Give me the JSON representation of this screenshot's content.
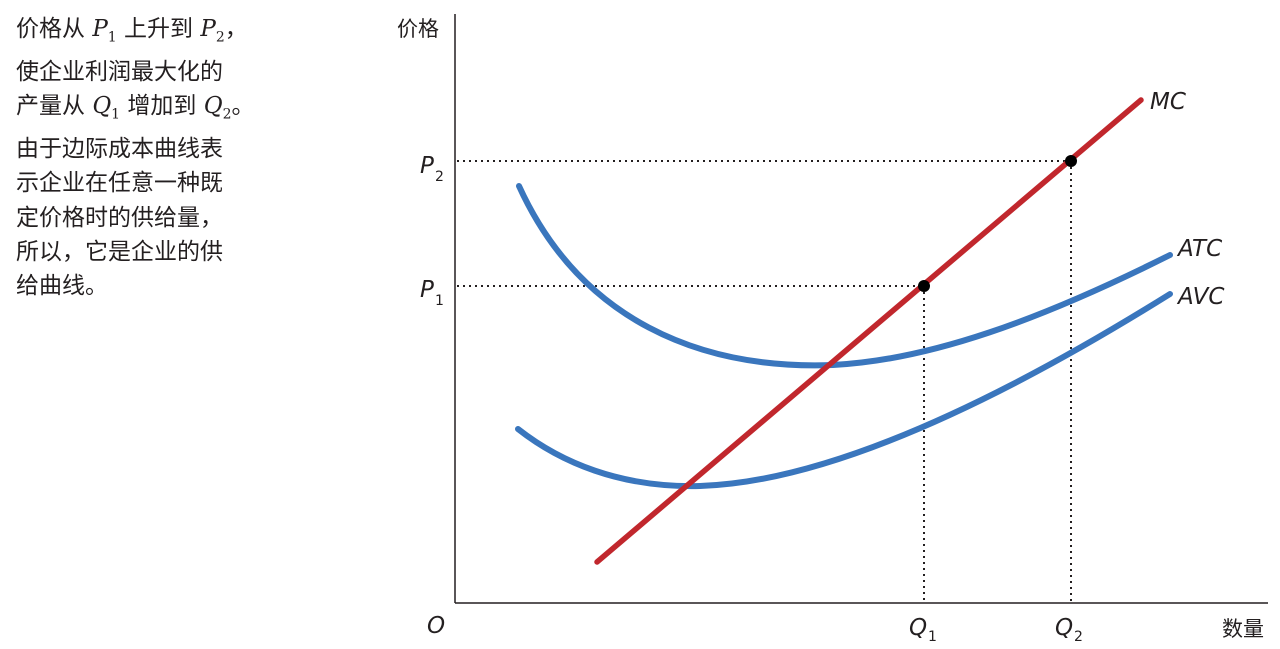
{
  "caption": {
    "l1_a": "价格从",
    "l1_p": "P",
    "l1_p_sub": "1",
    "l1_b": "上升到",
    "l1_p2": "P",
    "l1_p2_sub": "2",
    "l1_c": "，",
    "l2": "使企业利润最大化的",
    "l3_a": "产量从",
    "l3_q": "Q",
    "l3_q_sub": "1",
    "l3_b": "增加到",
    "l3_q2": "Q",
    "l3_q2_sub": "2",
    "l3_c": "。",
    "l4": "由于边际成本曲线表",
    "l5": "示企业在任意一种既",
    "l6": "定价格时的供给量，",
    "l7": "所以，它是企业的供",
    "l8": "给曲线。"
  },
  "axes": {
    "y_label": "价格",
    "x_label": "数量",
    "origin": "O"
  },
  "labels": {
    "p_letter": "P",
    "p1_sub": "1",
    "p2_sub": "2",
    "q_letter": "Q",
    "q1_sub": "1",
    "q2_sub": "2",
    "mc": "MC",
    "atc": "ATC",
    "avc": "AVC"
  },
  "colors": {
    "mc": "#c1272d",
    "atc": "#3a76bd",
    "avc": "#3a76bd",
    "axis": "#231f20"
  }
}
